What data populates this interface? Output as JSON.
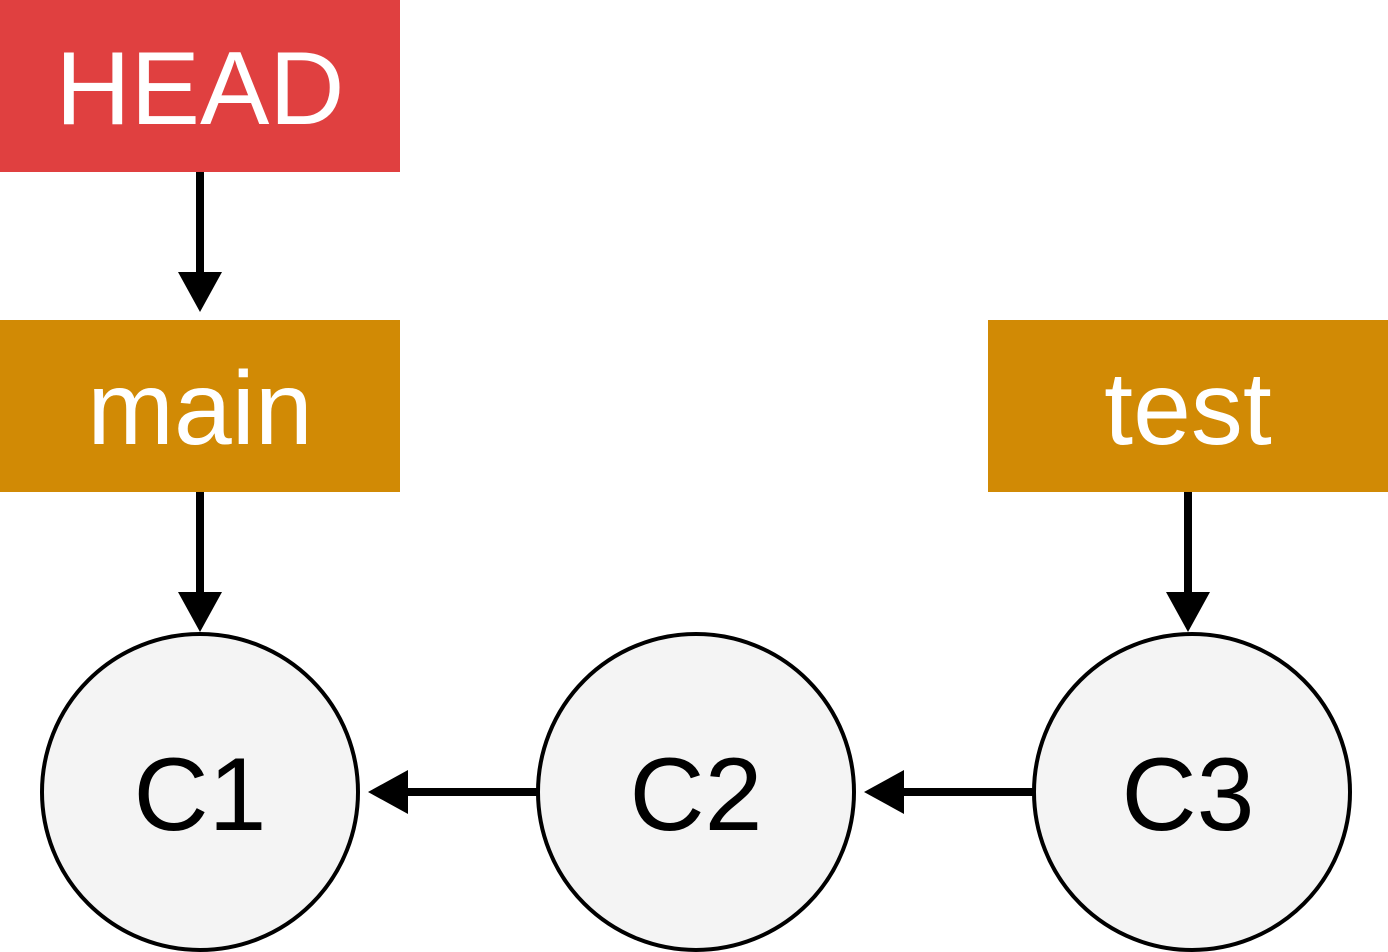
{
  "colors": {
    "head": "#e04040",
    "branch": "#d18a05",
    "commit_fill": "#f4f4f4",
    "commit_stroke": "#000000",
    "arrow": "#000000",
    "label_text": "#ffffff"
  },
  "refs": {
    "head": {
      "label": "HEAD"
    },
    "main": {
      "label": "main"
    },
    "test": {
      "label": "test"
    }
  },
  "commits": {
    "c1": {
      "label": "C1"
    },
    "c2": {
      "label": "C2"
    },
    "c3": {
      "label": "C3"
    }
  }
}
